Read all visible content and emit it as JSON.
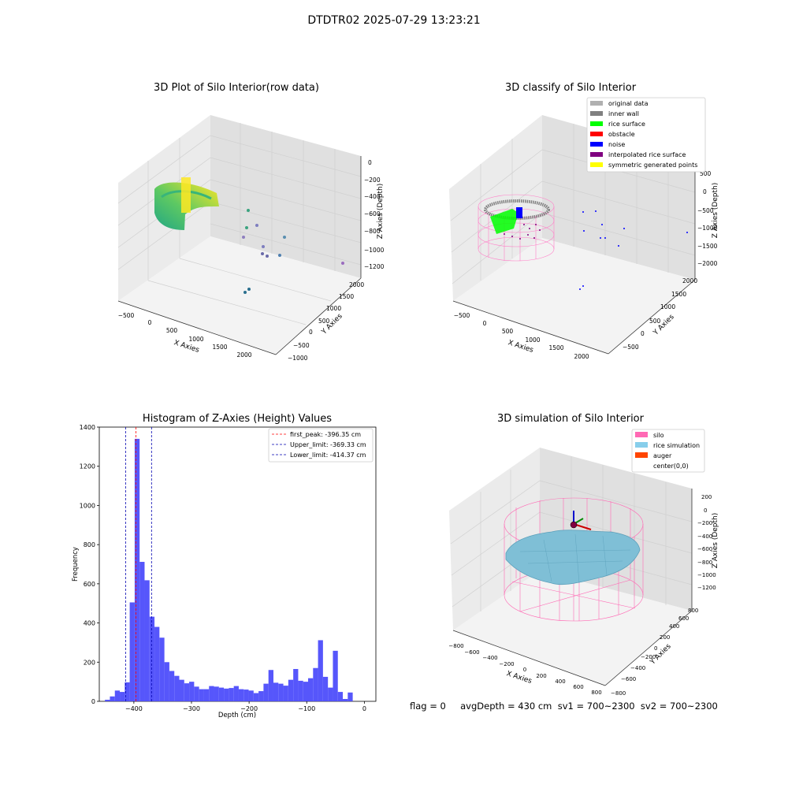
{
  "figure": {
    "suptitle": "DTDTR02 2025-07-29 13:23:21",
    "status_line": "flag = 0     avgDepth = 430 cm  sv1 = 700~2300  sv2 = 700~2300"
  },
  "chart_data": [
    {
      "type": "scatter3d",
      "title": "3D Plot of Silo Interior(row data)",
      "xlabel": "X Axies",
      "ylabel": "Y Axies",
      "zlabel": "Z Axies (Depth)",
      "xticks": [
        "−500",
        "0",
        "500",
        "1000",
        "1500",
        "2000"
      ],
      "yticks": [
        "−1000",
        "−500",
        "0",
        "500",
        "1000",
        "1500",
        "2000"
      ],
      "zticks": [
        "0",
        "−200",
        "−400",
        "−600",
        "−800",
        "−1000",
        "−1200"
      ],
      "xlim": [
        -600,
        2200
      ],
      "ylim": [
        -1000,
        2200
      ],
      "zlim": [
        -1250,
        50
      ],
      "colormap": "viridis by depth"
    },
    {
      "type": "scatter3d",
      "title": "3D classify of Silo Interior",
      "xlabel": "X Axies",
      "ylabel": "Y Axies",
      "zlabel": "Z Axies (Depth)",
      "xticks": [
        "−500",
        "0",
        "500",
        "1000",
        "1500",
        "2000"
      ],
      "yticks": [
        "−500",
        "0",
        "500",
        "1000",
        "1500",
        "2000"
      ],
      "zticks": [
        "500",
        "0",
        "−500",
        "−1000",
        "−1500",
        "−2000"
      ],
      "legend_position": "top-right",
      "legend": [
        {
          "label": "original data",
          "color": "#b0b0b0"
        },
        {
          "label": "inner wall",
          "color": "#808080"
        },
        {
          "label": "rice surface",
          "color": "#00ff00"
        },
        {
          "label": "obstacle",
          "color": "#ff0000"
        },
        {
          "label": "noise",
          "color": "#0000ff"
        },
        {
          "label": "interpolated rice surface",
          "color": "#800080"
        },
        {
          "label": "symmetric generated points",
          "color": "#ffff00"
        }
      ]
    },
    {
      "type": "bar",
      "title": "Histogram of Z-Axies (Height) Values",
      "xlabel": "Depth (cm)",
      "ylabel": "Frequency",
      "xlim": [
        -460,
        20
      ],
      "ylim": [
        0,
        1400
      ],
      "xticks": [
        -400,
        -300,
        -200,
        -100,
        0
      ],
      "yticks": [
        0,
        200,
        400,
        600,
        800,
        1000,
        1200,
        1400
      ],
      "bar_color": "#4d4dfb",
      "bin_width": 8.6,
      "bin_starts": [
        -450.2,
        -441.6,
        -433.0,
        -424.4,
        -415.8,
        -407.2,
        -398.6,
        -390.0,
        -381.4,
        -372.8,
        -364.2,
        -355.6,
        -347.0,
        -338.4,
        -329.8,
        -321.2,
        -312.6,
        -304.0,
        -295.4,
        -286.8,
        -278.2,
        -269.6,
        -261.0,
        -252.4,
        -243.8,
        -235.2,
        -226.6,
        -218.0,
        -209.4,
        -200.8,
        -192.2,
        -183.6,
        -175.0,
        -166.4,
        -157.8,
        -149.2,
        -140.6,
        -132.0,
        -123.4,
        -114.8,
        -106.2,
        -97.6,
        -89.0,
        -80.4,
        -71.8,
        -63.2,
        -54.6,
        -46.0,
        -37.4,
        -28.8,
        -20.2,
        -11.6,
        -3.0
      ],
      "values": [
        8,
        25,
        55,
        48,
        97,
        505,
        1340,
        712,
        618,
        432,
        380,
        325,
        200,
        155,
        130,
        110,
        92,
        100,
        75,
        62,
        62,
        78,
        75,
        70,
        65,
        68,
        78,
        62,
        60,
        55,
        42,
        52,
        90,
        160,
        95,
        90,
        80,
        110,
        165,
        105,
        100,
        118,
        170,
        312,
        125,
        70,
        258,
        48,
        12,
        45,
        0,
        0,
        0
      ],
      "lines": [
        {
          "label": "first_peak: -396.35 cm",
          "x": -396.35,
          "color": "#ff0000"
        },
        {
          "label": "Upper_limit: -369.33 cm",
          "x": -369.33,
          "color": "#0000b0"
        },
        {
          "label": "Lower_limit: -414.37 cm",
          "x": -414.37,
          "color": "#0000b0"
        }
      ],
      "legend_position": "top-right",
      "grid": false
    },
    {
      "type": "surface3d",
      "title": "3D simulation of Silo Interior",
      "xlabel": "X Axies",
      "ylabel": "Y Axies",
      "zlabel": "Z Axies (Depth)",
      "xticks": [
        "−800",
        "−600",
        "−400",
        "−200",
        "0",
        "200",
        "400",
        "600",
        "800"
      ],
      "yticks": [
        "−800",
        "−600",
        "−400",
        "−200",
        "0",
        "200",
        "400",
        "600",
        "800"
      ],
      "zticks": [
        "200",
        "0",
        "−200",
        "−400",
        "−600",
        "−800",
        "−1000",
        "−1200"
      ],
      "legend_position": "top-right",
      "legend": [
        {
          "label": "silo",
          "color": "#ff69b4"
        },
        {
          "label": "rice simulation",
          "color": "#87ceeb"
        },
        {
          "label": "auger",
          "color": "#ff4500"
        },
        {
          "label": "center(0,0)",
          "color": ""
        }
      ]
    }
  ]
}
